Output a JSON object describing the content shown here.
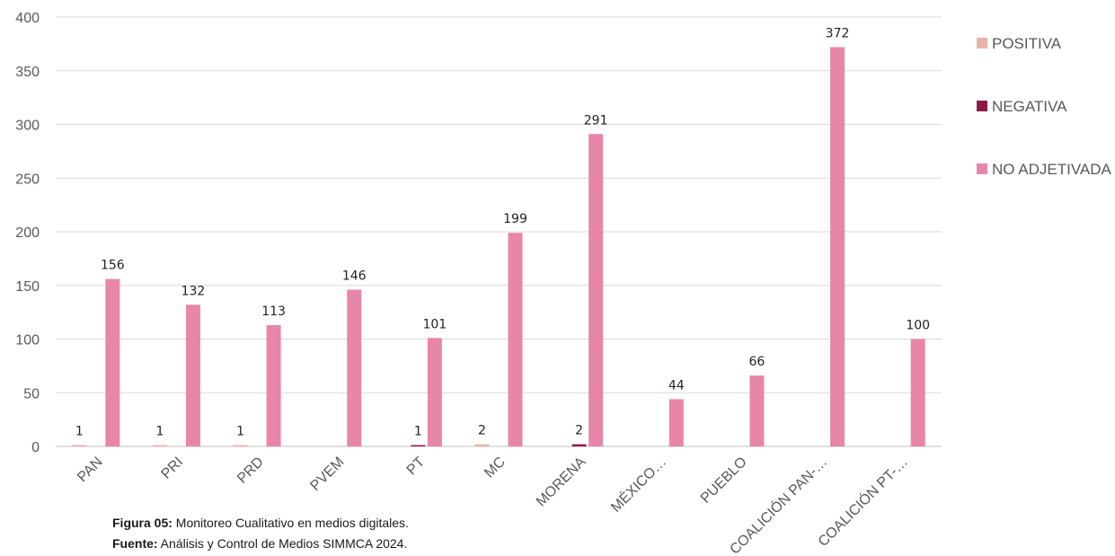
{
  "chart_data": {
    "type": "bar",
    "title": "",
    "xlabel": "",
    "ylabel": "",
    "ylim": [
      0,
      400
    ],
    "yticks": [
      0,
      50,
      100,
      150,
      200,
      250,
      300,
      350,
      400
    ],
    "grid": true,
    "legend_position": "right",
    "categories": [
      "PAN",
      "PRI",
      "PRD",
      "PVEM",
      "PT",
      "MC",
      "MORENA",
      "MÉXICO…",
      "PUEBLO",
      "COALICIÓN PAN-…",
      "COALICIÓN PT-…"
    ],
    "series": [
      {
        "name": "POSITIVA",
        "color": "#E8B4A8",
        "values": [
          1,
          1,
          1,
          null,
          null,
          2,
          null,
          null,
          null,
          null,
          null
        ]
      },
      {
        "name": "NEGATIVA",
        "color": "#8B1A4A",
        "values": [
          null,
          null,
          null,
          null,
          1,
          null,
          2,
          null,
          null,
          null,
          null
        ]
      },
      {
        "name": "NO ADJETIVADA",
        "color": "#E886A8",
        "values": [
          156,
          132,
          113,
          146,
          101,
          199,
          291,
          44,
          66,
          372,
          100
        ]
      }
    ]
  },
  "caption": {
    "figure_label": "Figura 05:",
    "figure_text": " Monitoreo Cualitativo en medios digitales.",
    "source_label": "Fuente:",
    "source_text": " Análisis y Control de Medios SIMMCA 2024."
  }
}
